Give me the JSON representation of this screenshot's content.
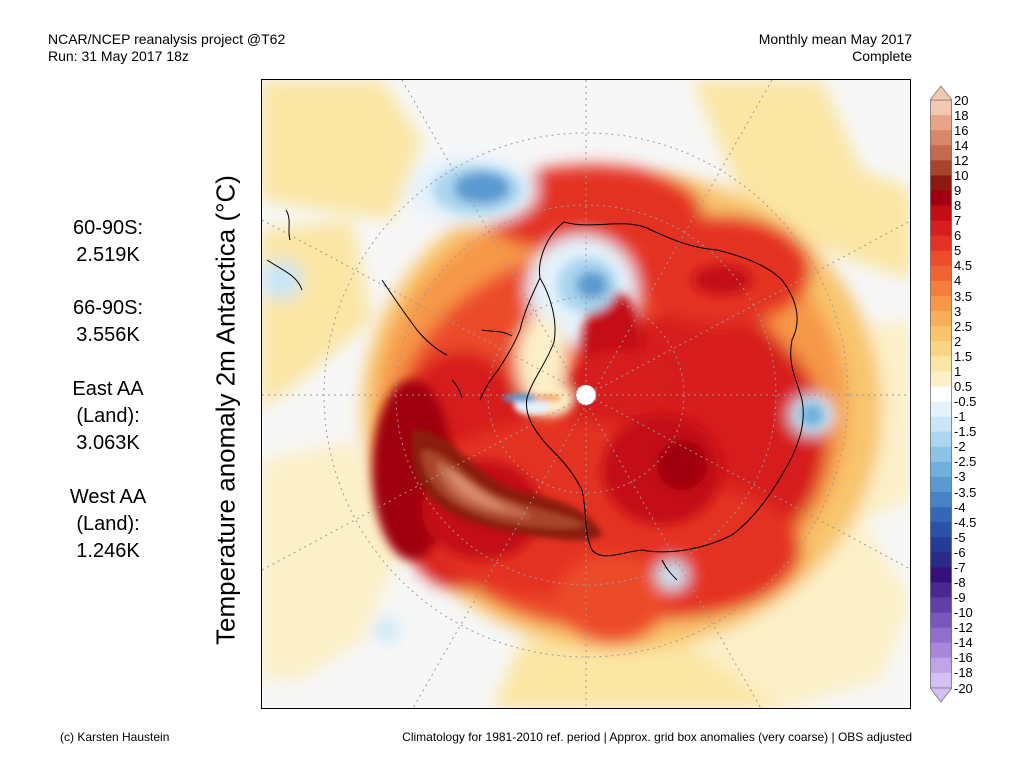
{
  "header": {
    "left_line1": "NCAR/NCEP reanalysis project @T62",
    "left_line2": "Run: 31 May 2017 18z",
    "right_line1": "Monthly mean May 2017",
    "right_line2": "Complete"
  },
  "stats": [
    {
      "label": "60-90S:",
      "value": "2.519K"
    },
    {
      "label": "66-90S:",
      "value": "3.556K"
    },
    {
      "label": "East AA",
      "label2": "(Land):",
      "value": "3.063K"
    },
    {
      "label": "West AA",
      "label2": "(Land):",
      "value": "1.246K"
    }
  ],
  "map": {
    "ylabel": "Temperature anomaly 2m Antarctica (°C)",
    "projection": "south-polar-stereographic"
  },
  "colorbar": {
    "levels": [
      "20",
      "18",
      "16",
      "14",
      "12",
      "10",
      "9",
      "8",
      "7",
      "6",
      "5",
      "4.5",
      "4",
      "3.5",
      "3",
      "2.5",
      "2",
      "1.5",
      "1",
      "0.5",
      "-0.5",
      "-1",
      "-1.5",
      "-2",
      "-2.5",
      "-3",
      "-3.5",
      "-4",
      "-4.5",
      "-5",
      "-6",
      "-7",
      "-8",
      "-9",
      "-10",
      "-12",
      "-14",
      "-16",
      "-18",
      "-20"
    ],
    "colors": [
      "#f4c8b0",
      "#e8a488",
      "#d8886a",
      "#c46a4e",
      "#a8442c",
      "#8c1a10",
      "#a00010",
      "#c40c14",
      "#d61e1e",
      "#e43224",
      "#ec4c2c",
      "#f06434",
      "#f47e3c",
      "#f69848",
      "#f8ae58",
      "#f8c46c",
      "#fad684",
      "#fbe6a4",
      "#fcf0c8",
      "#ffffff",
      "#e4f2fb",
      "#c8e6f7",
      "#aad6ef",
      "#8cc4e6",
      "#70b0dc",
      "#5a9ad0",
      "#4682c4",
      "#3468b6",
      "#2a52a6",
      "#243c96",
      "#2a2a88",
      "#34127a",
      "#4a2a92",
      "#6040a8",
      "#7858bc",
      "#9070cc",
      "#a888dc",
      "#c0a4e8",
      "#d4c0f2"
    ]
  },
  "footer": {
    "left": "(c) Karsten Haustein",
    "right": "Climatology for 1981-2010 ref. period | Approx. grid box anomalies (very coarse) | OBS adjusted"
  }
}
